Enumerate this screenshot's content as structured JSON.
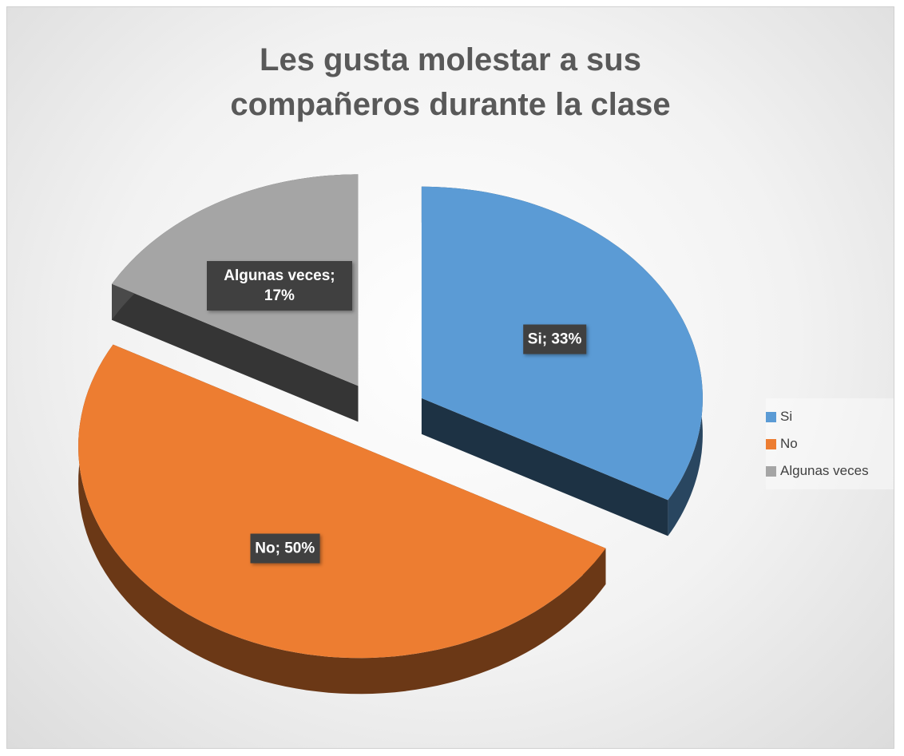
{
  "chart_data": {
    "type": "pie3d",
    "title": "Les gusta molestar a sus compañeros durante la clase",
    "categories": [
      "Si",
      "No",
      "Algunas veces"
    ],
    "values": [
      33,
      50,
      17
    ],
    "value_labels": [
      "Si; 33%",
      "No; 50%",
      "Algunas veces; 17%"
    ],
    "colors": [
      "#5b9bd5",
      "#ed7d31",
      "#a5a5a5"
    ],
    "legend": "right"
  }
}
